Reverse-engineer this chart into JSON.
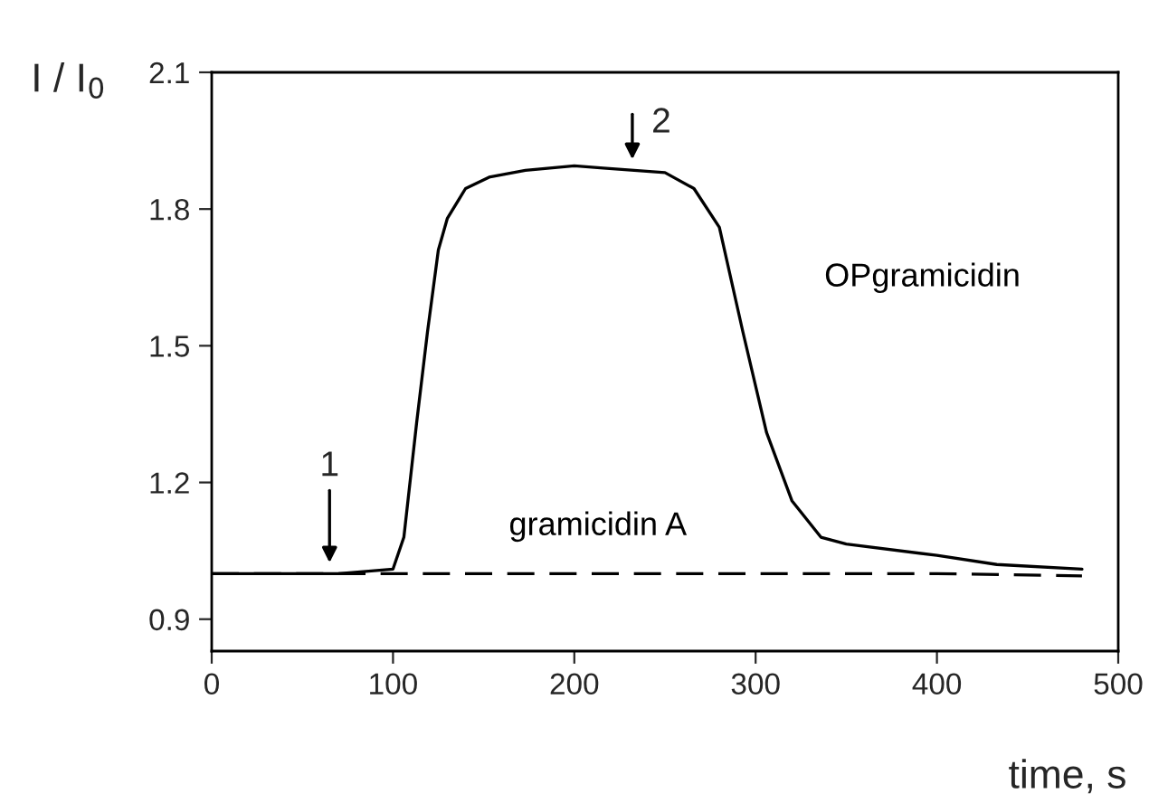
{
  "chart_data": {
    "type": "line",
    "xlabel": "time, s",
    "ylabel": "I / I$_{0}$",
    "xlim": [
      0,
      500
    ],
    "xticks": [
      0,
      100,
      200,
      300,
      400,
      500
    ],
    "ylim": [
      0.83,
      2.1
    ],
    "yticks": [
      0.9,
      1.2,
      1.5,
      1.8,
      2.1
    ],
    "grid": false,
    "legend": false,
    "marker": "none",
    "series": [
      {
        "name": "OPgramicidin",
        "color": "#000000",
        "line_style": "solid",
        "x": [
          0,
          30,
          60,
          70,
          100,
          106,
          113,
          119,
          125,
          130,
          140,
          153,
          173,
          200,
          216,
          250,
          266,
          280,
          293,
          306,
          320,
          336,
          350,
          400,
          433,
          480
        ],
        "values": [
          1.0,
          1.0,
          1.0,
          1.0,
          1.01,
          1.08,
          1.33,
          1.53,
          1.71,
          1.78,
          1.845,
          1.87,
          1.885,
          1.895,
          1.89,
          1.88,
          1.845,
          1.76,
          1.53,
          1.31,
          1.16,
          1.08,
          1.065,
          1.04,
          1.02,
          1.01
        ]
      },
      {
        "name": "gramicidin A",
        "color": "#000000",
        "line_style": "dashed",
        "x": [
          0,
          100,
          200,
          300,
          400,
          480
        ],
        "values": [
          1.0,
          1.0,
          1.0,
          1.0,
          1.0,
          0.995
        ]
      }
    ],
    "annotations": [
      {
        "text": "1",
        "x": 65,
        "y": 1.0
      },
      {
        "text": "2",
        "x": 232,
        "y": 1.885
      }
    ]
  }
}
